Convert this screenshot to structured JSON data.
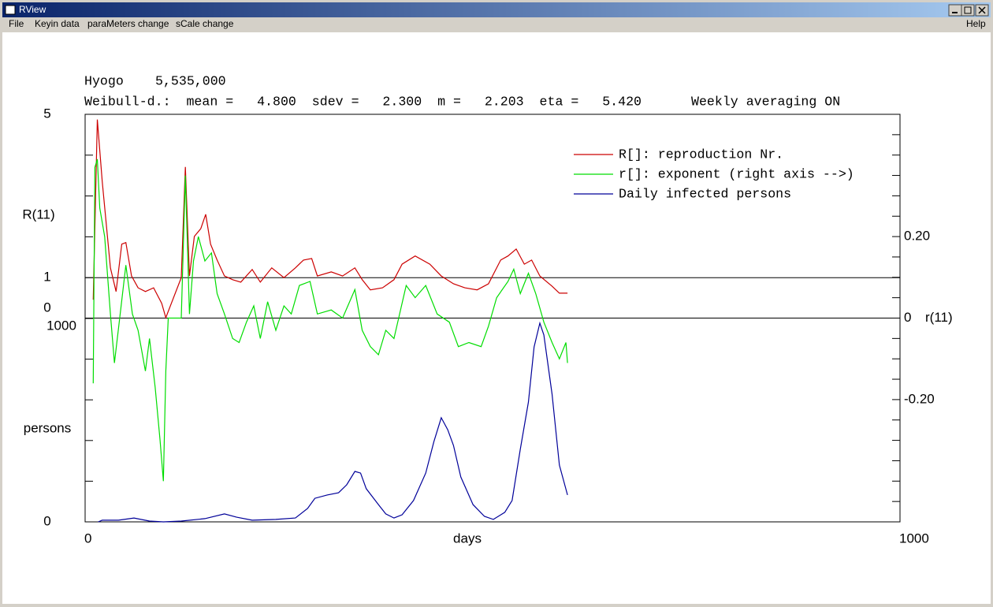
{
  "window": {
    "title": "RView",
    "menu": [
      "File",
      "Keyin data",
      "paraMeters change",
      "sCale change"
    ],
    "help": "Help"
  },
  "chart_data": {
    "type": "line",
    "title": "Hyogo",
    "population": "5,535,000",
    "subtitle": "Weibull-d.:  mean =   4.800  sdev =   2.300  m =   2.203  eta =   5.420",
    "note": "Weekly averaging ON",
    "xlabel": "days",
    "ylabel": "R(11)",
    "y2label": "r(11)",
    "y3label": "persons",
    "xlim": [
      0,
      1000
    ],
    "xticks": [
      0,
      1000
    ],
    "ylim": [
      0,
      5
    ],
    "yticks": [
      0,
      1,
      5
    ],
    "yminor": [
      2,
      3,
      4
    ],
    "y2lim": [
      -0.5,
      0.5
    ],
    "y2ticks": [
      {
        "value": -0.2,
        "label": "-0.20"
      },
      0,
      {
        "value": 0.2,
        "label": "0.20"
      }
    ],
    "y2minor": [
      -0.45,
      -0.4,
      -0.35,
      -0.3,
      -0.25,
      -0.15,
      -0.1,
      -0.05,
      0.05,
      0.1,
      0.15,
      0.25,
      0.3,
      0.35,
      0.4,
      0.45
    ],
    "y3lim": [
      0,
      1000
    ],
    "y3ticks": [
      0,
      1000
    ],
    "y3minor": [
      200,
      400,
      600,
      800
    ],
    "hlines": [
      {
        "axis": "y",
        "value": 1
      },
      {
        "axis": "y2",
        "value": 0
      }
    ],
    "legend": "top-right",
    "series": [
      {
        "name": "R[]: reproduction Nr.",
        "color": "#cc0000",
        "axis": "y",
        "x": [
          10,
          15,
          21,
          31,
          38,
          45,
          50,
          57,
          65,
          74,
          84,
          94,
          99,
          118,
          123,
          128,
          134,
          142,
          148,
          154,
          162,
          171,
          181,
          191,
          205,
          215,
          229,
          244,
          258,
          268,
          278,
          285,
          302,
          316,
          331,
          340,
          350,
          365,
          379,
          389,
          405,
          423,
          437,
          452,
          466,
          481,
          495,
          510,
          519,
          529,
          539,
          548,
          558,
          573,
          582,
          592
        ],
        "values": [
          0.46,
          4.87,
          3.36,
          1.24,
          0.66,
          1.82,
          1.86,
          1.04,
          0.75,
          0.66,
          0.75,
          0.37,
          0.02,
          1.0,
          3.71,
          1.04,
          2.01,
          2.2,
          2.55,
          1.82,
          1.43,
          1.04,
          0.95,
          0.89,
          1.2,
          0.89,
          1.24,
          1.0,
          1.24,
          1.43,
          1.47,
          1.04,
          1.14,
          1.04,
          1.24,
          0.95,
          0.7,
          0.75,
          0.95,
          1.33,
          1.53,
          1.33,
          1.04,
          0.85,
          0.75,
          0.7,
          0.85,
          1.43,
          1.53,
          1.7,
          1.33,
          1.43,
          1.04,
          0.79,
          0.62,
          0.62
        ]
      },
      {
        "name": "r[]: exponent (right axis -->)",
        "color": "#00dd00",
        "axis": "y2",
        "x": [
          10,
          12,
          15,
          18,
          24,
          31,
          36,
          43,
          50,
          58,
          65,
          74,
          79,
          86,
          92,
          96,
          99,
          102,
          118,
          123,
          128,
          133,
          139,
          147,
          155,
          162,
          171,
          181,
          189,
          198,
          207,
          215,
          224,
          234,
          244,
          253,
          263,
          276,
          285,
          302,
          316,
          331,
          340,
          350,
          360,
          369,
          379,
          394,
          405,
          418,
          432,
          447,
          458,
          471,
          486,
          495,
          505,
          519,
          526,
          534,
          544,
          553,
          563,
          573,
          582,
          590,
          592
        ],
        "values": [
          -0.16,
          0.37,
          0.39,
          0.27,
          0.2,
          0.01,
          -0.11,
          0.01,
          0.13,
          0.01,
          -0.03,
          -0.13,
          -0.05,
          -0.17,
          -0.3,
          -0.4,
          -0.13,
          0,
          0,
          0.35,
          0.01,
          0.14,
          0.2,
          0.14,
          0.16,
          0.06,
          0.01,
          -0.05,
          -0.06,
          -0.01,
          0.03,
          -0.05,
          0.04,
          -0.03,
          0.03,
          0.01,
          0.08,
          0.09,
          0.01,
          0.02,
          0,
          0.07,
          -0.03,
          -0.07,
          -0.09,
          -0.03,
          -0.05,
          0.08,
          0.05,
          0.08,
          0.01,
          -0.01,
          -0.07,
          -0.06,
          -0.07,
          -0.02,
          0.05,
          0.09,
          0.12,
          0.06,
          0.11,
          0.06,
          -0.01,
          -0.06,
          -0.1,
          -0.06,
          -0.11
        ]
      },
      {
        "name": "Daily infected persons",
        "color": "#000099",
        "axis": "y3",
        "x": [
          16,
          21,
          41,
          60,
          79,
          96,
          118,
          147,
          171,
          186,
          205,
          234,
          258,
          273,
          282,
          297,
          311,
          321,
          331,
          338,
          345,
          360,
          369,
          379,
          389,
          403,
          418,
          428,
          437,
          445,
          452,
          461,
          476,
          490,
          501,
          515,
          524,
          534,
          544,
          551,
          558,
          563,
          573,
          582,
          592
        ],
        "values": [
          0,
          8,
          8,
          19,
          4,
          0,
          4,
          16,
          39,
          23,
          8,
          12,
          19,
          66,
          116,
          132,
          143,
          182,
          248,
          240,
          163,
          85,
          39,
          19,
          35,
          105,
          240,
          395,
          512,
          453,
          376,
          221,
          85,
          27,
          12,
          47,
          105,
          357,
          589,
          860,
          977,
          919,
          628,
          279,
          132
        ]
      }
    ]
  }
}
